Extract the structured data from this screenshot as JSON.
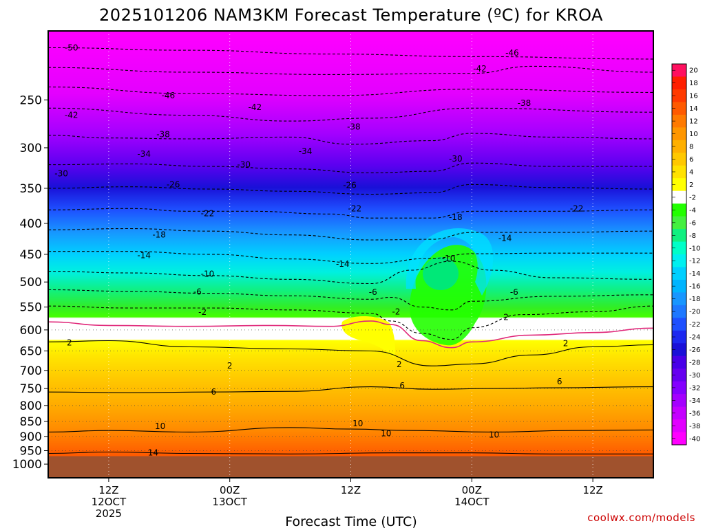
{
  "chart_data": {
    "type": "heatmap",
    "title": "2025101206 NAM3KM Forecast Temperature (ºC) for KROA",
    "xlabel": "Forecast Time (UTC)",
    "ylabel": "",
    "watermark": "coolwx.com/models",
    "y_axis": {
      "units": "hPa",
      "scale": "log",
      "inverted": true,
      "ylim": [
        1000,
        200
      ],
      "ticks": [
        250,
        300,
        350,
        400,
        450,
        500,
        550,
        600,
        650,
        700,
        750,
        800,
        850,
        900,
        950,
        1000
      ],
      "grid_levels": [
        600,
        650,
        700,
        750,
        800,
        850,
        900,
        950
      ]
    },
    "x_axis": {
      "xlim_hours": [
        6,
        66
      ],
      "ticks": [
        {
          "hour": 12,
          "lines": [
            "12Z",
            "12OCT",
            "2025"
          ]
        },
        {
          "hour": 24,
          "lines": [
            "00Z",
            "13OCT"
          ]
        },
        {
          "hour": 36,
          "lines": [
            "12Z"
          ]
        },
        {
          "hour": 48,
          "lines": [
            "00Z",
            "14OCT"
          ]
        },
        {
          "hour": 60,
          "lines": [
            "12Z"
          ]
        }
      ]
    },
    "colorbar": {
      "labels": [
        20,
        18,
        16,
        14,
        12,
        10,
        8,
        6,
        4,
        2,
        -2,
        -4,
        -6,
        -8,
        -10,
        -12,
        -14,
        -16,
        -18,
        -20,
        -22,
        -24,
        -26,
        -28,
        -30,
        -32,
        -34,
        -36,
        -38,
        -40
      ],
      "colors": [
        "#ff1060",
        "#ff1f00",
        "#ff3a00",
        "#ff5a00",
        "#ff7a00",
        "#ff9600",
        "#ffb000",
        "#ffc800",
        "#ffe200",
        "#ffff00",
        "#ffffff",
        "#22ff00",
        "#44f040",
        "#10f080",
        "#00ffc8",
        "#00f0f0",
        "#00d0ff",
        "#00b4ff",
        "#1896ff",
        "#1e78ff",
        "#1e50ff",
        "#1c28f0",
        "#1a10d8",
        "#4800e8",
        "#6600f0",
        "#8400ff",
        "#a400ff",
        "#c400ff",
        "#e200ff",
        "#ff00ff"
      ]
    },
    "ground_below_hPa": 970,
    "contour_interval_C": 4,
    "series": [
      {
        "level_C": -50,
        "points": [
          [
            6,
            205
          ],
          [
            20,
            207
          ],
          [
            34,
            210
          ],
          [
            48,
            212
          ],
          [
            66,
            214
          ]
        ]
      },
      {
        "level_C": -46,
        "points": [
          [
            6,
            221
          ],
          [
            20,
            225
          ],
          [
            34,
            227
          ],
          [
            48,
            226
          ],
          [
            54,
            220
          ],
          [
            66,
            225
          ]
        ]
      },
      {
        "level_C": -42,
        "points": [
          [
            6,
            238
          ],
          [
            20,
            244
          ],
          [
            34,
            246
          ],
          [
            48,
            240
          ],
          [
            66,
            243
          ]
        ]
      },
      {
        "level_C": -38,
        "points": [
          [
            6,
            258
          ],
          [
            20,
            265
          ],
          [
            30,
            271
          ],
          [
            38,
            268
          ],
          [
            48,
            258
          ],
          [
            66,
            262
          ]
        ]
      },
      {
        "level_C": -34,
        "points": [
          [
            6,
            286
          ],
          [
            12,
            289
          ],
          [
            20,
            290
          ],
          [
            30,
            288
          ],
          [
            36,
            296
          ],
          [
            44,
            292
          ],
          [
            48,
            284
          ],
          [
            56,
            288
          ],
          [
            66,
            290
          ]
        ]
      },
      {
        "level_C": -30,
        "points": [
          [
            6,
            320
          ],
          [
            14,
            319
          ],
          [
            22,
            322
          ],
          [
            30,
            325
          ],
          [
            38,
            330
          ],
          [
            44,
            328
          ],
          [
            48,
            318
          ],
          [
            56,
            322
          ],
          [
            66,
            322
          ]
        ]
      },
      {
        "level_C": -26,
        "points": [
          [
            6,
            350
          ],
          [
            14,
            348
          ],
          [
            22,
            351
          ],
          [
            30,
            354
          ],
          [
            38,
            358
          ],
          [
            44,
            356
          ],
          [
            48,
            345
          ],
          [
            56,
            349
          ],
          [
            66,
            351
          ]
        ]
      },
      {
        "level_C": -22,
        "points": [
          [
            6,
            380
          ],
          [
            14,
            378
          ],
          [
            20,
            382
          ],
          [
            26,
            382
          ],
          [
            34,
            386
          ],
          [
            38,
            392
          ],
          [
            44,
            392
          ],
          [
            48,
            382
          ],
          [
            56,
            382
          ],
          [
            66,
            380
          ]
        ]
      },
      {
        "level_C": -18,
        "points": [
          [
            6,
            410
          ],
          [
            14,
            408
          ],
          [
            22,
            412
          ],
          [
            30,
            418
          ],
          [
            38,
            426
          ],
          [
            44,
            425
          ],
          [
            48,
            414
          ],
          [
            56,
            414
          ],
          [
            66,
            412
          ]
        ]
      },
      {
        "level_C": -14,
        "points": [
          [
            6,
            445
          ],
          [
            14,
            445
          ],
          [
            22,
            450
          ],
          [
            30,
            458
          ],
          [
            38,
            466
          ],
          [
            44,
            457
          ],
          [
            48,
            449
          ],
          [
            56,
            448
          ],
          [
            66,
            448
          ]
        ]
      },
      {
        "level_C": -10,
        "points": [
          [
            6,
            480
          ],
          [
            14,
            483
          ],
          [
            22,
            488
          ],
          [
            30,
            495
          ],
          [
            38,
            503
          ],
          [
            42,
            478
          ],
          [
            46,
            462
          ],
          [
            50,
            478
          ],
          [
            56,
            492
          ],
          [
            66,
            495
          ]
        ]
      },
      {
        "level_C": -6,
        "points": [
          [
            6,
            515
          ],
          [
            14,
            518
          ],
          [
            22,
            522
          ],
          [
            30,
            527
          ],
          [
            38,
            534
          ],
          [
            40,
            530
          ],
          [
            43,
            550
          ],
          [
            46,
            556
          ],
          [
            48,
            538
          ],
          [
            56,
            528
          ],
          [
            66,
            525
          ]
        ]
      },
      {
        "level_C": -2,
        "points": [
          [
            6,
            548
          ],
          [
            14,
            552
          ],
          [
            22,
            552
          ],
          [
            30,
            556
          ],
          [
            38,
            563
          ],
          [
            40,
            580
          ],
          [
            43,
            608
          ],
          [
            46,
            622
          ],
          [
            48,
            595
          ],
          [
            53,
            566
          ],
          [
            60,
            560
          ],
          [
            66,
            548
          ]
        ]
      },
      {
        "level_C": 2,
        "points": [
          [
            6,
            628
          ],
          [
            12,
            625
          ],
          [
            20,
            640
          ],
          [
            30,
            645
          ],
          [
            38,
            650
          ],
          [
            44,
            688
          ],
          [
            48,
            683
          ],
          [
            54,
            660
          ],
          [
            60,
            640
          ],
          [
            66,
            635
          ]
        ]
      },
      {
        "level_C": 6,
        "points": [
          [
            6,
            760
          ],
          [
            14,
            762
          ],
          [
            22,
            760
          ],
          [
            30,
            758
          ],
          [
            38,
            745
          ],
          [
            44,
            752
          ],
          [
            50,
            750
          ],
          [
            56,
            748
          ],
          [
            66,
            745
          ]
        ]
      },
      {
        "level_C": 10,
        "points": [
          [
            6,
            885
          ],
          [
            12,
            880
          ],
          [
            20,
            885
          ],
          [
            30,
            870
          ],
          [
            36,
            875
          ],
          [
            42,
            880
          ],
          [
            50,
            885
          ],
          [
            58,
            880
          ],
          [
            66,
            878
          ]
        ]
      },
      {
        "level_C": 14,
        "points": [
          [
            6,
            960
          ],
          [
            12,
            955
          ],
          [
            20,
            960
          ],
          [
            30,
            962
          ],
          [
            40,
            958
          ],
          [
            48,
            958
          ],
          [
            56,
            962
          ],
          [
            66,
            962
          ]
        ]
      }
    ],
    "freezing_line": {
      "level_C": 0,
      "color": "#e0287a",
      "points": [
        [
          6,
          582
        ],
        [
          12,
          590
        ],
        [
          20,
          592
        ],
        [
          28,
          590
        ],
        [
          34,
          592
        ],
        [
          38,
          580
        ],
        [
          40,
          588
        ],
        [
          43,
          625
        ],
        [
          46,
          642
        ],
        [
          48,
          628
        ],
        [
          54,
          612
        ],
        [
          60,
          606
        ],
        [
          66,
          596
        ]
      ]
    },
    "contour_labels": [
      {
        "text": "-50",
        "x_hour": 8.3,
        "p": 205
      },
      {
        "text": "-46",
        "x_hour": 17.9,
        "p": 246
      },
      {
        "text": "-42",
        "x_hour": 8.3,
        "p": 265
      },
      {
        "text": "-42",
        "x_hour": 26.5,
        "p": 257
      },
      {
        "text": "-46",
        "x_hour": 52,
        "p": 209
      },
      {
        "text": "-42",
        "x_hour": 48.8,
        "p": 222
      },
      {
        "text": "-38",
        "x_hour": 17.4,
        "p": 285
      },
      {
        "text": "-38",
        "x_hour": 36.3,
        "p": 277
      },
      {
        "text": "-38",
        "x_hour": 53.2,
        "p": 253
      },
      {
        "text": "-34",
        "x_hour": 15.5,
        "p": 307
      },
      {
        "text": "-34",
        "x_hour": 31.5,
        "p": 304
      },
      {
        "text": "-30",
        "x_hour": 7.3,
        "p": 331
      },
      {
        "text": "-30",
        "x_hour": 25.4,
        "p": 320
      },
      {
        "text": "-30",
        "x_hour": 46.4,
        "p": 313
      },
      {
        "text": "-26",
        "x_hour": 18.4,
        "p": 345
      },
      {
        "text": "-26",
        "x_hour": 35.9,
        "p": 346
      },
      {
        "text": "-22",
        "x_hour": 21.8,
        "p": 385
      },
      {
        "text": "-22",
        "x_hour": 36.4,
        "p": 378
      },
      {
        "text": "-22",
        "x_hour": 58.4,
        "p": 378
      },
      {
        "text": "-18",
        "x_hour": 17,
        "p": 418
      },
      {
        "text": "-18",
        "x_hour": 46.4,
        "p": 391
      },
      {
        "text": "-14",
        "x_hour": 15.5,
        "p": 452
      },
      {
        "text": "-14",
        "x_hour": 35.2,
        "p": 467
      },
      {
        "text": "-14",
        "x_hour": 51.3,
        "p": 423
      },
      {
        "text": "-10",
        "x_hour": 21.8,
        "p": 485
      },
      {
        "text": "-10",
        "x_hour": 45.7,
        "p": 457
      },
      {
        "text": "-6",
        "x_hour": 20.8,
        "p": 519
      },
      {
        "text": "-6",
        "x_hour": 38.2,
        "p": 520
      },
      {
        "text": "-6",
        "x_hour": 52.2,
        "p": 520
      },
      {
        "text": "-2",
        "x_hour": 21.3,
        "p": 561
      },
      {
        "text": "-2",
        "x_hour": 40.5,
        "p": 560
      },
      {
        "text": "2",
        "x_hour": 51.4,
        "p": 572
      },
      {
        "text": "2",
        "x_hour": 8.1,
        "p": 630
      },
      {
        "text": "2",
        "x_hour": 24,
        "p": 688
      },
      {
        "text": "2",
        "x_hour": 40.8,
        "p": 684
      },
      {
        "text": "2",
        "x_hour": 57.3,
        "p": 632
      },
      {
        "text": "6",
        "x_hour": 41.1,
        "p": 742
      },
      {
        "text": "6",
        "x_hour": 56.7,
        "p": 730
      },
      {
        "text": "6",
        "x_hour": 22.4,
        "p": 760
      },
      {
        "text": "10",
        "x_hour": 17.1,
        "p": 866
      },
      {
        "text": "10",
        "x_hour": 36.7,
        "p": 857
      },
      {
        "text": "10",
        "x_hour": 39.5,
        "p": 890
      },
      {
        "text": "10",
        "x_hour": 50.2,
        "p": 895
      },
      {
        "text": "14",
        "x_hour": 16.4,
        "p": 958
      }
    ]
  }
}
